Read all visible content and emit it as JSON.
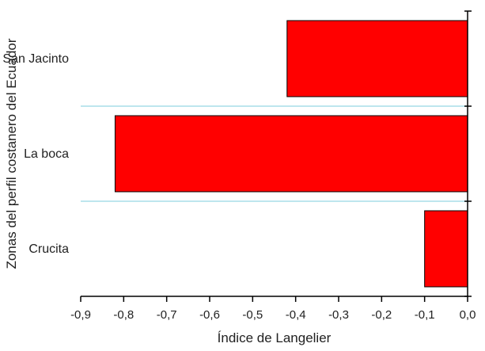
{
  "chart_data": {
    "type": "bar",
    "orientation": "horizontal",
    "categories": [
      "San Jacinto",
      "La boca",
      "Crucita"
    ],
    "values": [
      -0.42,
      -0.82,
      -0.1
    ],
    "xlabel": "Índice de Langelier",
    "ylabel": "Zonas del perfil costanero del Ecuador",
    "xlim": [
      -0.9,
      0.0
    ],
    "xticks": [
      -0.9,
      -0.8,
      -0.7,
      -0.6,
      -0.5,
      -0.4,
      -0.3,
      -0.2,
      -0.1,
      0.0
    ],
    "xtick_labels": [
      "-0,9",
      "-0,8",
      "-0,7",
      "-0,6",
      "-0,5",
      "-0,4",
      "-0,3",
      "-0,2",
      "-0,1",
      "0,0"
    ],
    "bar_color": "#ff0000",
    "separator_color": "#a8dde8",
    "grid": false,
    "legend": false
  }
}
